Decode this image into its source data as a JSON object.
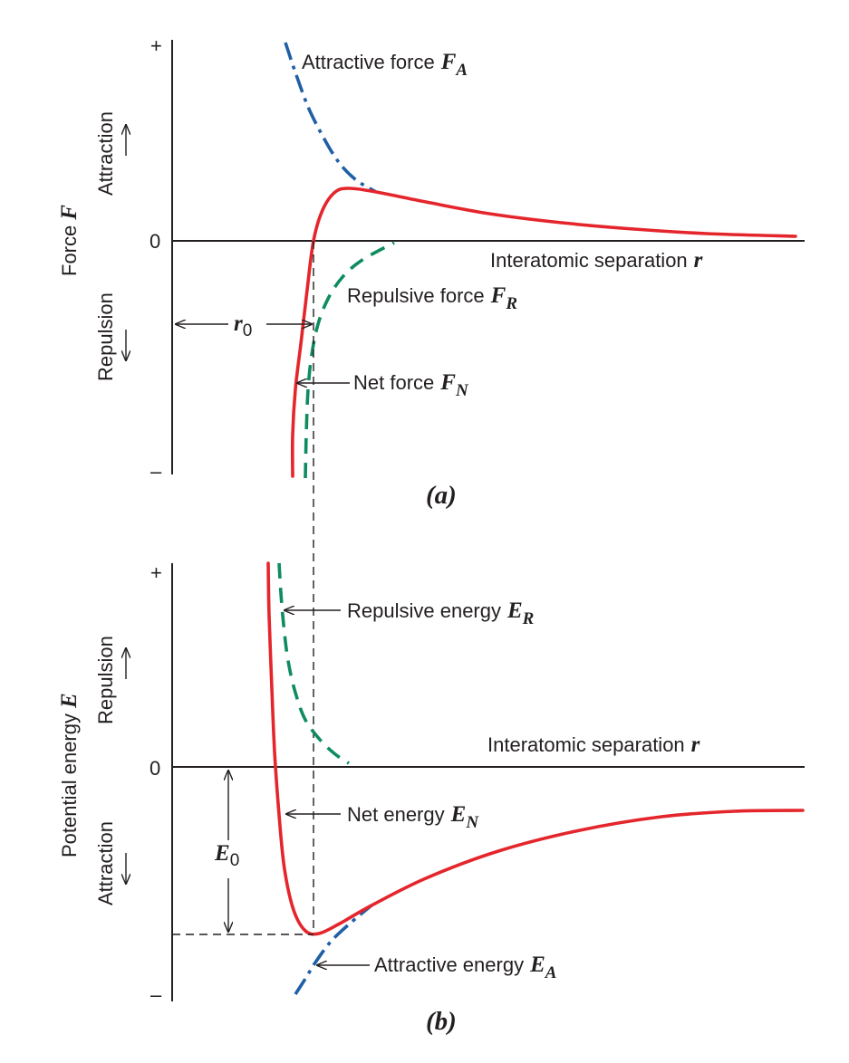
{
  "panel_a": {
    "caption": "(a)",
    "y_axis_label": "Force",
    "y_axis_symbol": "F",
    "tick_plus": "+",
    "tick_zero": "0",
    "tick_minus": "–",
    "upper_region_label": "Attraction",
    "lower_region_label": "Repulsion",
    "x_axis_label": "Interatomic separation",
    "x_axis_symbol": "r",
    "attractive_label": "Attractive force",
    "attractive_symbol": "F",
    "attractive_subscript": "A",
    "repulsive_label": "Repulsive force",
    "repulsive_symbol": "F",
    "repulsive_subscript": "R",
    "net_label": "Net force",
    "net_symbol": "F",
    "net_subscript": "N",
    "equilibrium_symbol": "r",
    "equilibrium_subscript": "0"
  },
  "panel_b": {
    "caption": "(b)",
    "y_axis_label": "Potential energy",
    "y_axis_symbol": "E",
    "tick_plus": "+",
    "tick_zero": "0",
    "tick_minus": "–",
    "upper_region_label": "Repulsion",
    "lower_region_label": "Attraction",
    "x_axis_label": "Interatomic separation",
    "x_axis_symbol": "r",
    "repulsive_label": "Repulsive energy",
    "repulsive_symbol": "E",
    "repulsive_subscript": "R",
    "net_label": "Net energy",
    "net_symbol": "E",
    "net_subscript": "N",
    "attractive_label": "Attractive energy",
    "attractive_symbol": "E",
    "attractive_subscript": "A",
    "min_energy_symbol": "E",
    "min_energy_subscript": "0"
  },
  "colors": {
    "net_curve": "#e4262c",
    "repulsive_curve": "#0e8c5e",
    "attractive_curve": "#1f5fa6",
    "ink": "#231f20"
  }
}
